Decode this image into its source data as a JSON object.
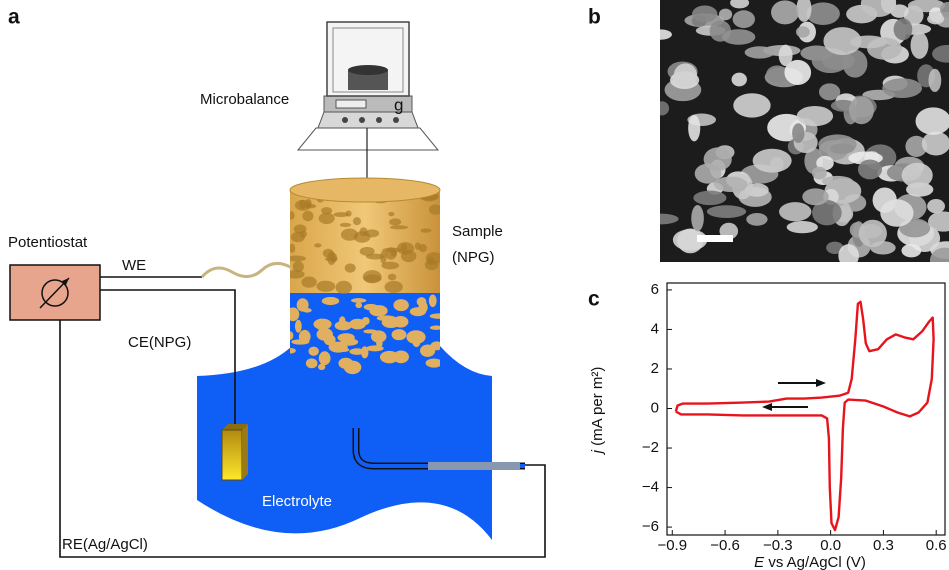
{
  "labels": {
    "panel_a": "a",
    "panel_b": "b",
    "panel_c": "c",
    "microbalance": "Microbalance",
    "balance_unit": "g",
    "sample": "Sample",
    "sample_material": "(NPG)",
    "potentiostat": "Potentiostat",
    "we": "WE",
    "ce": "CE(NPG)",
    "electrolyte": "Electrolyte",
    "re": "RE(Ag/AgCl)"
  },
  "chart_data": {
    "type": "line",
    "x_label_symbol": "E",
    "x_label_unit": "vs Ag/AgCl (V)",
    "y_label_symbol": "j",
    "y_label_unit": "(mA per m²)",
    "color": "#e8141c",
    "x": [
      -0.88,
      -0.87,
      -0.84,
      -0.7,
      -0.5,
      -0.35,
      -0.25,
      -0.15,
      -0.05,
      0.05,
      0.1,
      0.12,
      0.14,
      0.155,
      0.17,
      0.185,
      0.2,
      0.22,
      0.27,
      0.32,
      0.37,
      0.42,
      0.47,
      0.52,
      0.56,
      0.58,
      0.585,
      0.575,
      0.55,
      0.5,
      0.45,
      0.38,
      0.3,
      0.2,
      0.1,
      0.08,
      0.07,
      0.06,
      0.045,
      0.025,
      0.005,
      -0.005,
      -0.01,
      -0.02,
      -0.05,
      -0.1,
      -0.3,
      -0.5,
      -0.7,
      -0.85,
      -0.88
    ],
    "values": [
      -0.15,
      0.15,
      0.25,
      0.25,
      0.3,
      0.35,
      0.5,
      0.5,
      0.55,
      0.65,
      0.8,
      1.5,
      3.5,
      5.3,
      5.4,
      4.5,
      3.3,
      2.9,
      3.0,
      3.5,
      3.75,
      3.6,
      3.5,
      3.9,
      4.4,
      4.6,
      3.5,
      1.5,
      0.3,
      -0.2,
      -0.4,
      -0.2,
      0.1,
      0.4,
      0.45,
      0.3,
      -1,
      -3.5,
      -5.5,
      -6.15,
      -5.8,
      -4,
      -1.5,
      -0.5,
      -0.35,
      -0.35,
      -0.35,
      -0.35,
      -0.3,
      -0.3,
      -0.15
    ],
    "xlim": [
      -0.93,
      0.65
    ],
    "xticks": [
      {
        "value": -0.9,
        "label": "−0.9"
      },
      {
        "value": -0.6,
        "label": "−0.6"
      },
      {
        "value": -0.3,
        "label": "−0.3"
      },
      {
        "value": 0,
        "label": "0.0"
      },
      0.3,
      0.6
    ],
    "ylim": [
      -6.4,
      6.35
    ],
    "yticks": [
      {
        "value": -6,
        "label": "−6"
      },
      {
        "value": -4,
        "label": "−4"
      },
      {
        "value": -2,
        "label": "−2"
      },
      0,
      2,
      4,
      6
    ]
  }
}
